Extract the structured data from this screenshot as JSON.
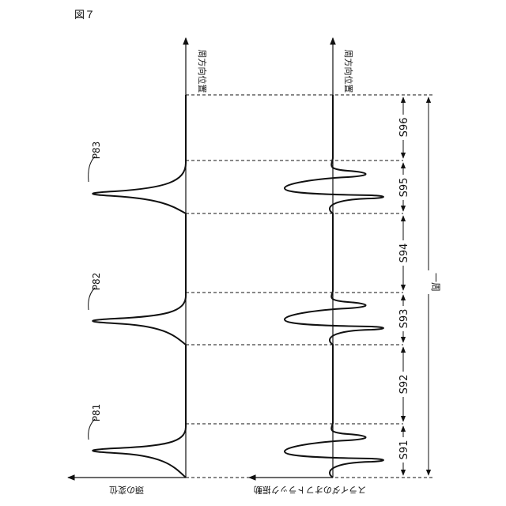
{
  "figure_label": "図７",
  "axes": {
    "circumferential_position_left": "周方向位置",
    "circumferential_position_right": "周方向位置",
    "head_displacement": "頭の変位",
    "slider_off_track_vibration": "スライダのオフトラック振動",
    "one_revolution": "一周"
  },
  "peaks": [
    "P81",
    "P82",
    "P83"
  ],
  "sectors": [
    "S91",
    "S92",
    "S93",
    "S94",
    "S95",
    "S96"
  ]
}
